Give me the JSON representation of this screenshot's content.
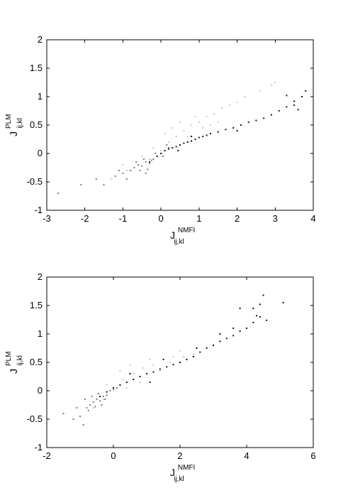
{
  "chart_data": [
    {
      "type": "scatter",
      "xlim": [
        -3,
        4
      ],
      "ylim": [
        -1,
        2
      ],
      "xticks": [
        -3,
        -2,
        -1,
        0,
        1,
        2,
        3,
        4
      ],
      "yticks": [
        -1,
        -0.5,
        0,
        0.5,
        1,
        1.5,
        2
      ],
      "xtick_labels": [
        "-3",
        "-2",
        "-1",
        "0",
        "1",
        "2",
        "3",
        "4"
      ],
      "ytick_labels": [
        "-1",
        "-0.5",
        "0",
        "0.5",
        "1",
        "1.5",
        "2"
      ],
      "xlabel": {
        "main": "J",
        "sup": "NMFI",
        "sub": "ij,kl"
      },
      "ylabel": {
        "main": "J",
        "sup": "PLM",
        "sub": "ij,kl"
      },
      "grid": false,
      "series_colors": [
        "#c8c8c8",
        "#7a7a7a",
        "#111111"
      ],
      "series": [
        {
          "points": [
            [
              -1.3,
              -0.45
            ],
            [
              -0.9,
              -0.3
            ],
            [
              -0.6,
              -0.2
            ],
            [
              -0.3,
              -0.1
            ],
            [
              0,
              0.05
            ],
            [
              0.2,
              0.2
            ],
            [
              0.4,
              0.3
            ],
            [
              0.6,
              0.4
            ],
            [
              0.8,
              0.5
            ],
            [
              1.0,
              0.55
            ],
            [
              1.2,
              0.65
            ],
            [
              1.4,
              0.7
            ],
            [
              1.6,
              0.8
            ],
            [
              1.8,
              0.85
            ],
            [
              2.0,
              0.9
            ],
            [
              2.2,
              1.0
            ],
            [
              2.6,
              1.1
            ],
            [
              2.9,
              1.2
            ],
            [
              3.0,
              1.25
            ],
            [
              0.3,
              0.45
            ],
            [
              0.5,
              0.55
            ],
            [
              0.9,
              0.65
            ],
            [
              1.1,
              0.45
            ],
            [
              -0.5,
              -0.05
            ],
            [
              -0.2,
              0.1
            ],
            [
              0.1,
              0.35
            ],
            [
              0.7,
              0.3
            ],
            [
              1.3,
              0.5
            ],
            [
              1.5,
              0.55
            ],
            [
              -1.0,
              -0.2
            ]
          ]
        },
        {
          "points": [
            [
              -2.7,
              -0.7
            ],
            [
              -2.1,
              -0.55
            ],
            [
              -1.7,
              -0.45
            ],
            [
              -1.5,
              -0.55
            ],
            [
              -1.2,
              -0.4
            ],
            [
              -1.0,
              -0.35
            ],
            [
              -0.8,
              -0.3
            ],
            [
              -0.7,
              -0.25
            ],
            [
              -0.6,
              -0.2
            ],
            [
              -0.5,
              -0.22
            ],
            [
              -0.4,
              -0.15
            ],
            [
              -0.3,
              -0.18
            ],
            [
              -0.2,
              -0.1
            ],
            [
              -0.1,
              -0.05
            ],
            [
              0.0,
              0.0
            ],
            [
              0.1,
              0.05
            ],
            [
              0.2,
              0.1
            ],
            [
              -0.45,
              -0.1
            ],
            [
              -0.35,
              -0.28
            ],
            [
              -0.25,
              -0.12
            ],
            [
              -0.55,
              -0.3
            ],
            [
              -0.65,
              -0.15
            ],
            [
              -0.15,
              0.0
            ],
            [
              0.05,
              -0.05
            ],
            [
              0.15,
              0.15
            ],
            [
              -0.9,
              -0.45
            ],
            [
              -1.1,
              -0.3
            ],
            [
              -0.4,
              -0.35
            ]
          ]
        },
        {
          "points": [
            [
              -0.3,
              -0.15
            ],
            [
              -0.1,
              -0.05
            ],
            [
              0.0,
              0.0
            ],
            [
              0.1,
              0.05
            ],
            [
              0.2,
              0.08
            ],
            [
              0.3,
              0.1
            ],
            [
              0.4,
              0.12
            ],
            [
              0.5,
              0.15
            ],
            [
              0.6,
              0.18
            ],
            [
              0.7,
              0.2
            ],
            [
              0.8,
              0.22
            ],
            [
              0.9,
              0.25
            ],
            [
              1.0,
              0.28
            ],
            [
              1.1,
              0.3
            ],
            [
              1.2,
              0.32
            ],
            [
              1.3,
              0.35
            ],
            [
              1.5,
              0.38
            ],
            [
              1.7,
              0.42
            ],
            [
              1.9,
              0.45
            ],
            [
              2.1,
              0.5
            ],
            [
              2.3,
              0.55
            ],
            [
              2.5,
              0.58
            ],
            [
              2.7,
              0.62
            ],
            [
              2.9,
              0.68
            ],
            [
              3.1,
              0.75
            ],
            [
              3.3,
              0.82
            ],
            [
              3.5,
              0.92
            ],
            [
              3.7,
              1.0
            ],
            [
              3.8,
              1.1
            ],
            [
              3.3,
              1.02
            ],
            [
              3.5,
              0.85
            ],
            [
              3.6,
              0.77
            ],
            [
              2.0,
              0.4
            ],
            [
              0.45,
              0.05
            ],
            [
              0.8,
              0.3
            ]
          ]
        }
      ]
    },
    {
      "type": "scatter",
      "xlim": [
        -2,
        6
      ],
      "ylim": [
        -1,
        2
      ],
      "xticks": [
        -2,
        0,
        2,
        4,
        6
      ],
      "yticks": [
        -1,
        -0.5,
        0,
        0.5,
        1,
        1.5,
        2
      ],
      "xtick_labels": [
        "-2",
        "0",
        "2",
        "4",
        "6"
      ],
      "ytick_labels": [
        "-1",
        "-0.5",
        "0",
        "0.5",
        "1",
        "1.5",
        "2"
      ],
      "xlabel": {
        "main": "J",
        "sup": "NMFI",
        "sub": "ij,kl"
      },
      "ylabel": {
        "main": "J",
        "sup": "PLM",
        "sub": "ij,kl"
      },
      "grid": false,
      "series_colors": [
        "#c8c8c8",
        "#7a7a7a",
        "#111111"
      ],
      "series": [
        {
          "points": [
            [
              -0.6,
              -0.3
            ],
            [
              -0.3,
              -0.15
            ],
            [
              0.0,
              0.05
            ],
            [
              0.3,
              0.2
            ],
            [
              0.6,
              0.3
            ],
            [
              0.9,
              0.4
            ],
            [
              1.2,
              0.45
            ],
            [
              1.5,
              0.55
            ],
            [
              1.8,
              0.6
            ],
            [
              2.1,
              0.6
            ],
            [
              2.4,
              0.65
            ],
            [
              0.5,
              0.45
            ],
            [
              1.0,
              0.3
            ],
            [
              1.4,
              0.35
            ],
            [
              0.2,
              0.35
            ],
            [
              1.7,
              0.5
            ],
            [
              -0.2,
              0.1
            ],
            [
              0.8,
              0.15
            ],
            [
              1.1,
              0.55
            ],
            [
              2.0,
              0.7
            ],
            [
              0.4,
              0.05
            ]
          ]
        },
        {
          "points": [
            [
              -1.5,
              -0.4
            ],
            [
              -1.2,
              -0.5
            ],
            [
              -1.0,
              -0.45
            ],
            [
              -0.8,
              -0.3
            ],
            [
              -0.7,
              -0.25
            ],
            [
              -0.6,
              -0.2
            ],
            [
              -0.5,
              -0.15
            ],
            [
              -0.4,
              -0.18
            ],
            [
              -0.3,
              -0.1
            ],
            [
              -0.2,
              -0.08
            ],
            [
              -0.1,
              0.0
            ],
            [
              0.0,
              0.02
            ],
            [
              0.1,
              0.05
            ],
            [
              -0.9,
              -0.6
            ],
            [
              -0.75,
              -0.35
            ],
            [
              -0.55,
              -0.28
            ],
            [
              -0.45,
              -0.05
            ],
            [
              -0.35,
              -0.25
            ],
            [
              -0.65,
              -0.1
            ],
            [
              -0.25,
              -0.15
            ],
            [
              -1.1,
              -0.3
            ],
            [
              -0.85,
              -0.15
            ]
          ]
        },
        {
          "points": [
            [
              -0.4,
              -0.1
            ],
            [
              -0.2,
              -0.02
            ],
            [
              0.0,
              0.05
            ],
            [
              0.2,
              0.1
            ],
            [
              0.4,
              0.15
            ],
            [
              0.6,
              0.2
            ],
            [
              0.8,
              0.25
            ],
            [
              1.0,
              0.3
            ],
            [
              1.2,
              0.33
            ],
            [
              1.4,
              0.38
            ],
            [
              1.6,
              0.42
            ],
            [
              1.8,
              0.46
            ],
            [
              2.0,
              0.5
            ],
            [
              2.2,
              0.55
            ],
            [
              2.4,
              0.6
            ],
            [
              2.6,
              0.68
            ],
            [
              2.8,
              0.75
            ],
            [
              3.0,
              0.8
            ],
            [
              3.2,
              0.87
            ],
            [
              3.4,
              0.92
            ],
            [
              3.6,
              0.97
            ],
            [
              3.8,
              1.05
            ],
            [
              4.0,
              1.1
            ],
            [
              4.2,
              1.2
            ],
            [
              4.4,
              1.3
            ],
            [
              4.5,
              1.68
            ],
            [
              4.4,
              1.52
            ],
            [
              4.3,
              1.32
            ],
            [
              4.6,
              1.24
            ],
            [
              5.1,
              1.55
            ],
            [
              3.8,
              1.45
            ],
            [
              4.2,
              1.45
            ],
            [
              3.2,
              1.0
            ],
            [
              3.6,
              1.1
            ],
            [
              2.5,
              0.75
            ],
            [
              1.5,
              0.55
            ],
            [
              0.5,
              0.3
            ],
            [
              1.1,
              0.15
            ]
          ]
        }
      ]
    }
  ]
}
